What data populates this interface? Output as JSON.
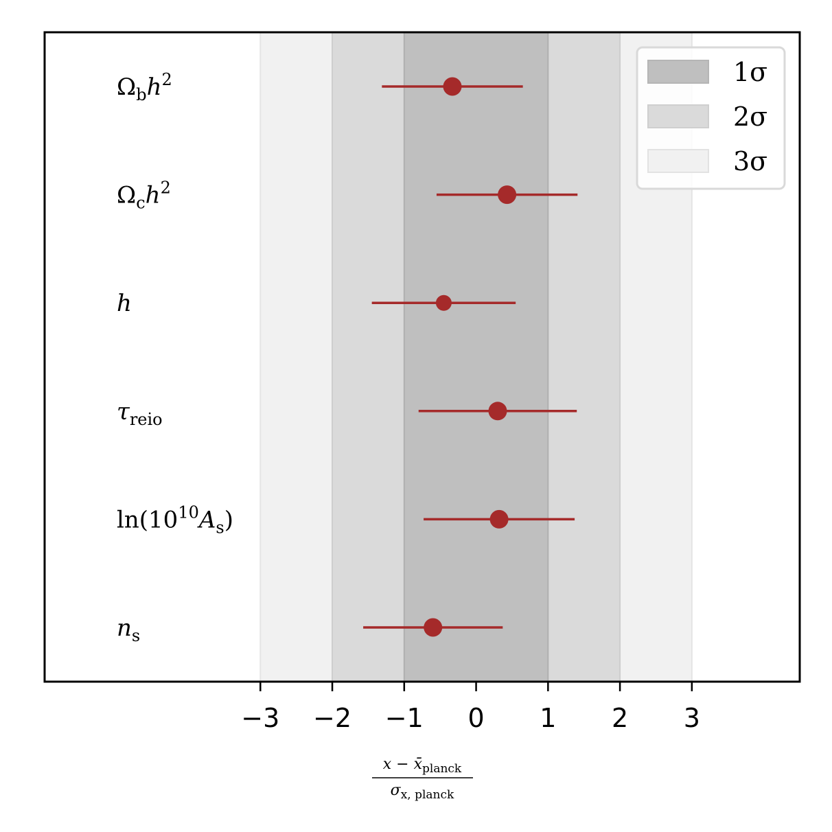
{
  "chart_data": {
    "type": "scatter",
    "subtype": "errorbar",
    "title": "",
    "xlim": [
      -6,
      4.5
    ],
    "xticks": [
      -3,
      -2,
      -1,
      0,
      1,
      2,
      3
    ],
    "xtick_labels": [
      "−3",
      "−2",
      "−1",
      "0",
      "1",
      "2",
      "3"
    ],
    "xlabel": {
      "numerator": "x − x̄",
      "numerator_sub": "planck",
      "denominator": "σ",
      "denominator_sub": "x, planck"
    },
    "grid": false,
    "legend": {
      "placement": "top-right",
      "entries": [
        {
          "label": "1σ",
          "color": "#bfbfbf"
        },
        {
          "label": "2σ",
          "color": "#dadada"
        },
        {
          "label": "3σ",
          "color": "#f1f1f1"
        }
      ]
    },
    "bands": [
      {
        "name": "3σ",
        "from": -3,
        "to": 3,
        "color": "#f1f1f1"
      },
      {
        "name": "2σ",
        "from": -2,
        "to": 2,
        "color": "#dadada"
      },
      {
        "name": "1σ",
        "from": -1,
        "to": 1,
        "color": "#bfbfbf"
      }
    ],
    "marker_color": "#a52a2a",
    "points": [
      {
        "label": "Ω",
        "label_sub": "b",
        "label_tail": "h",
        "label_sup": "2",
        "x": -0.33,
        "xerr": 0.98
      },
      {
        "label": "Ω",
        "label_sub": "c",
        "label_tail": "h",
        "label_sup": "2",
        "x": 0.43,
        "xerr": 0.98
      },
      {
        "label": "h",
        "label_sub": "",
        "label_tail": "",
        "label_sup": "",
        "x": -0.45,
        "xerr": 1.0
      },
      {
        "label": "τ",
        "label_sub": "reio",
        "label_tail": "",
        "label_sup": "",
        "x": 0.3,
        "xerr": 1.1
      },
      {
        "label": "ln(10",
        "label_sub": "",
        "label_tail": "",
        "label_sup": "10",
        "label_post": "A",
        "label_post_sub": "s",
        "label_close": ")",
        "x": 0.32,
        "xerr": 1.05
      },
      {
        "label": "n",
        "label_sub": "s",
        "label_tail": "",
        "label_sup": "",
        "x": -0.6,
        "xerr": 0.97
      }
    ]
  }
}
